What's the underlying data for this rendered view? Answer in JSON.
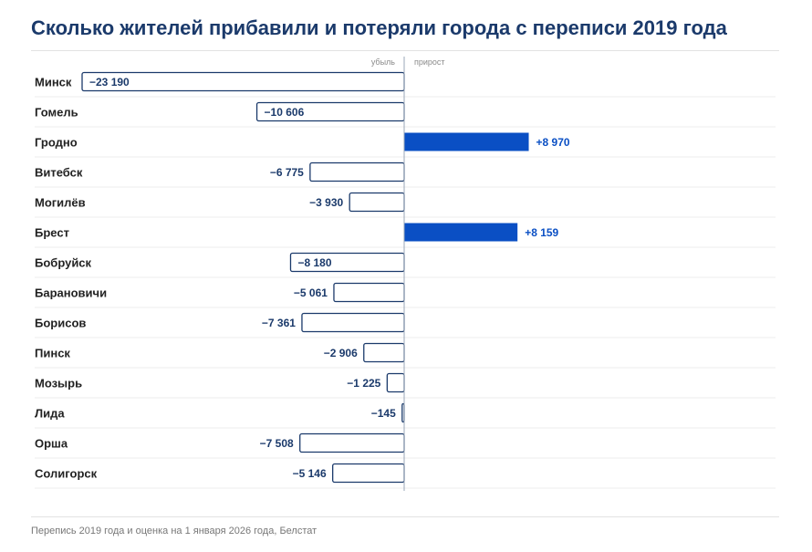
{
  "header": {
    "title": "Сколько жителей прибавили и потеряли города с переписи 2019 года"
  },
  "footer": {
    "source": "Перепись 2019 года и оценка на 1 января 2026 года, Белстат"
  },
  "colors": {
    "title": "#1b3a6b",
    "gain_fill": "#0a4fc4",
    "loss_stroke": "#1b3a6b",
    "gain_label": "#0a4fc4",
    "loss_label": "#1b3a6b"
  },
  "chart_data": {
    "type": "bar",
    "orientation": "horizontal",
    "title": "Сколько жителей прибавили и потеряли города с переписи 2019 года",
    "negative_header": "убыль",
    "positive_header": "прирост",
    "categories": [
      "Минск",
      "Гомель",
      "Гродно",
      "Витебск",
      "Могилёв",
      "Брест",
      "Бобруйск",
      "Барановичи",
      "Борисов",
      "Пинск",
      "Мозырь",
      "Лида",
      "Орша",
      "Солигорск"
    ],
    "values": [
      -23190,
      -10606,
      8970,
      -6775,
      -3930,
      8159,
      -8180,
      -5061,
      -7361,
      -2906,
      -1225,
      -145,
      -7508,
      -5146
    ],
    "value_labels": [
      "−23 190",
      "−10 606",
      "+8 970",
      "−6 775",
      "−3 930",
      "+8 159",
      "−8 180",
      "−5 061",
      "−7 361",
      "−2 906",
      "−1 225",
      "−145",
      "−7 508",
      "−5 146"
    ],
    "xlim": [
      -23190,
      26800
    ],
    "grid": false,
    "legend": "none"
  }
}
